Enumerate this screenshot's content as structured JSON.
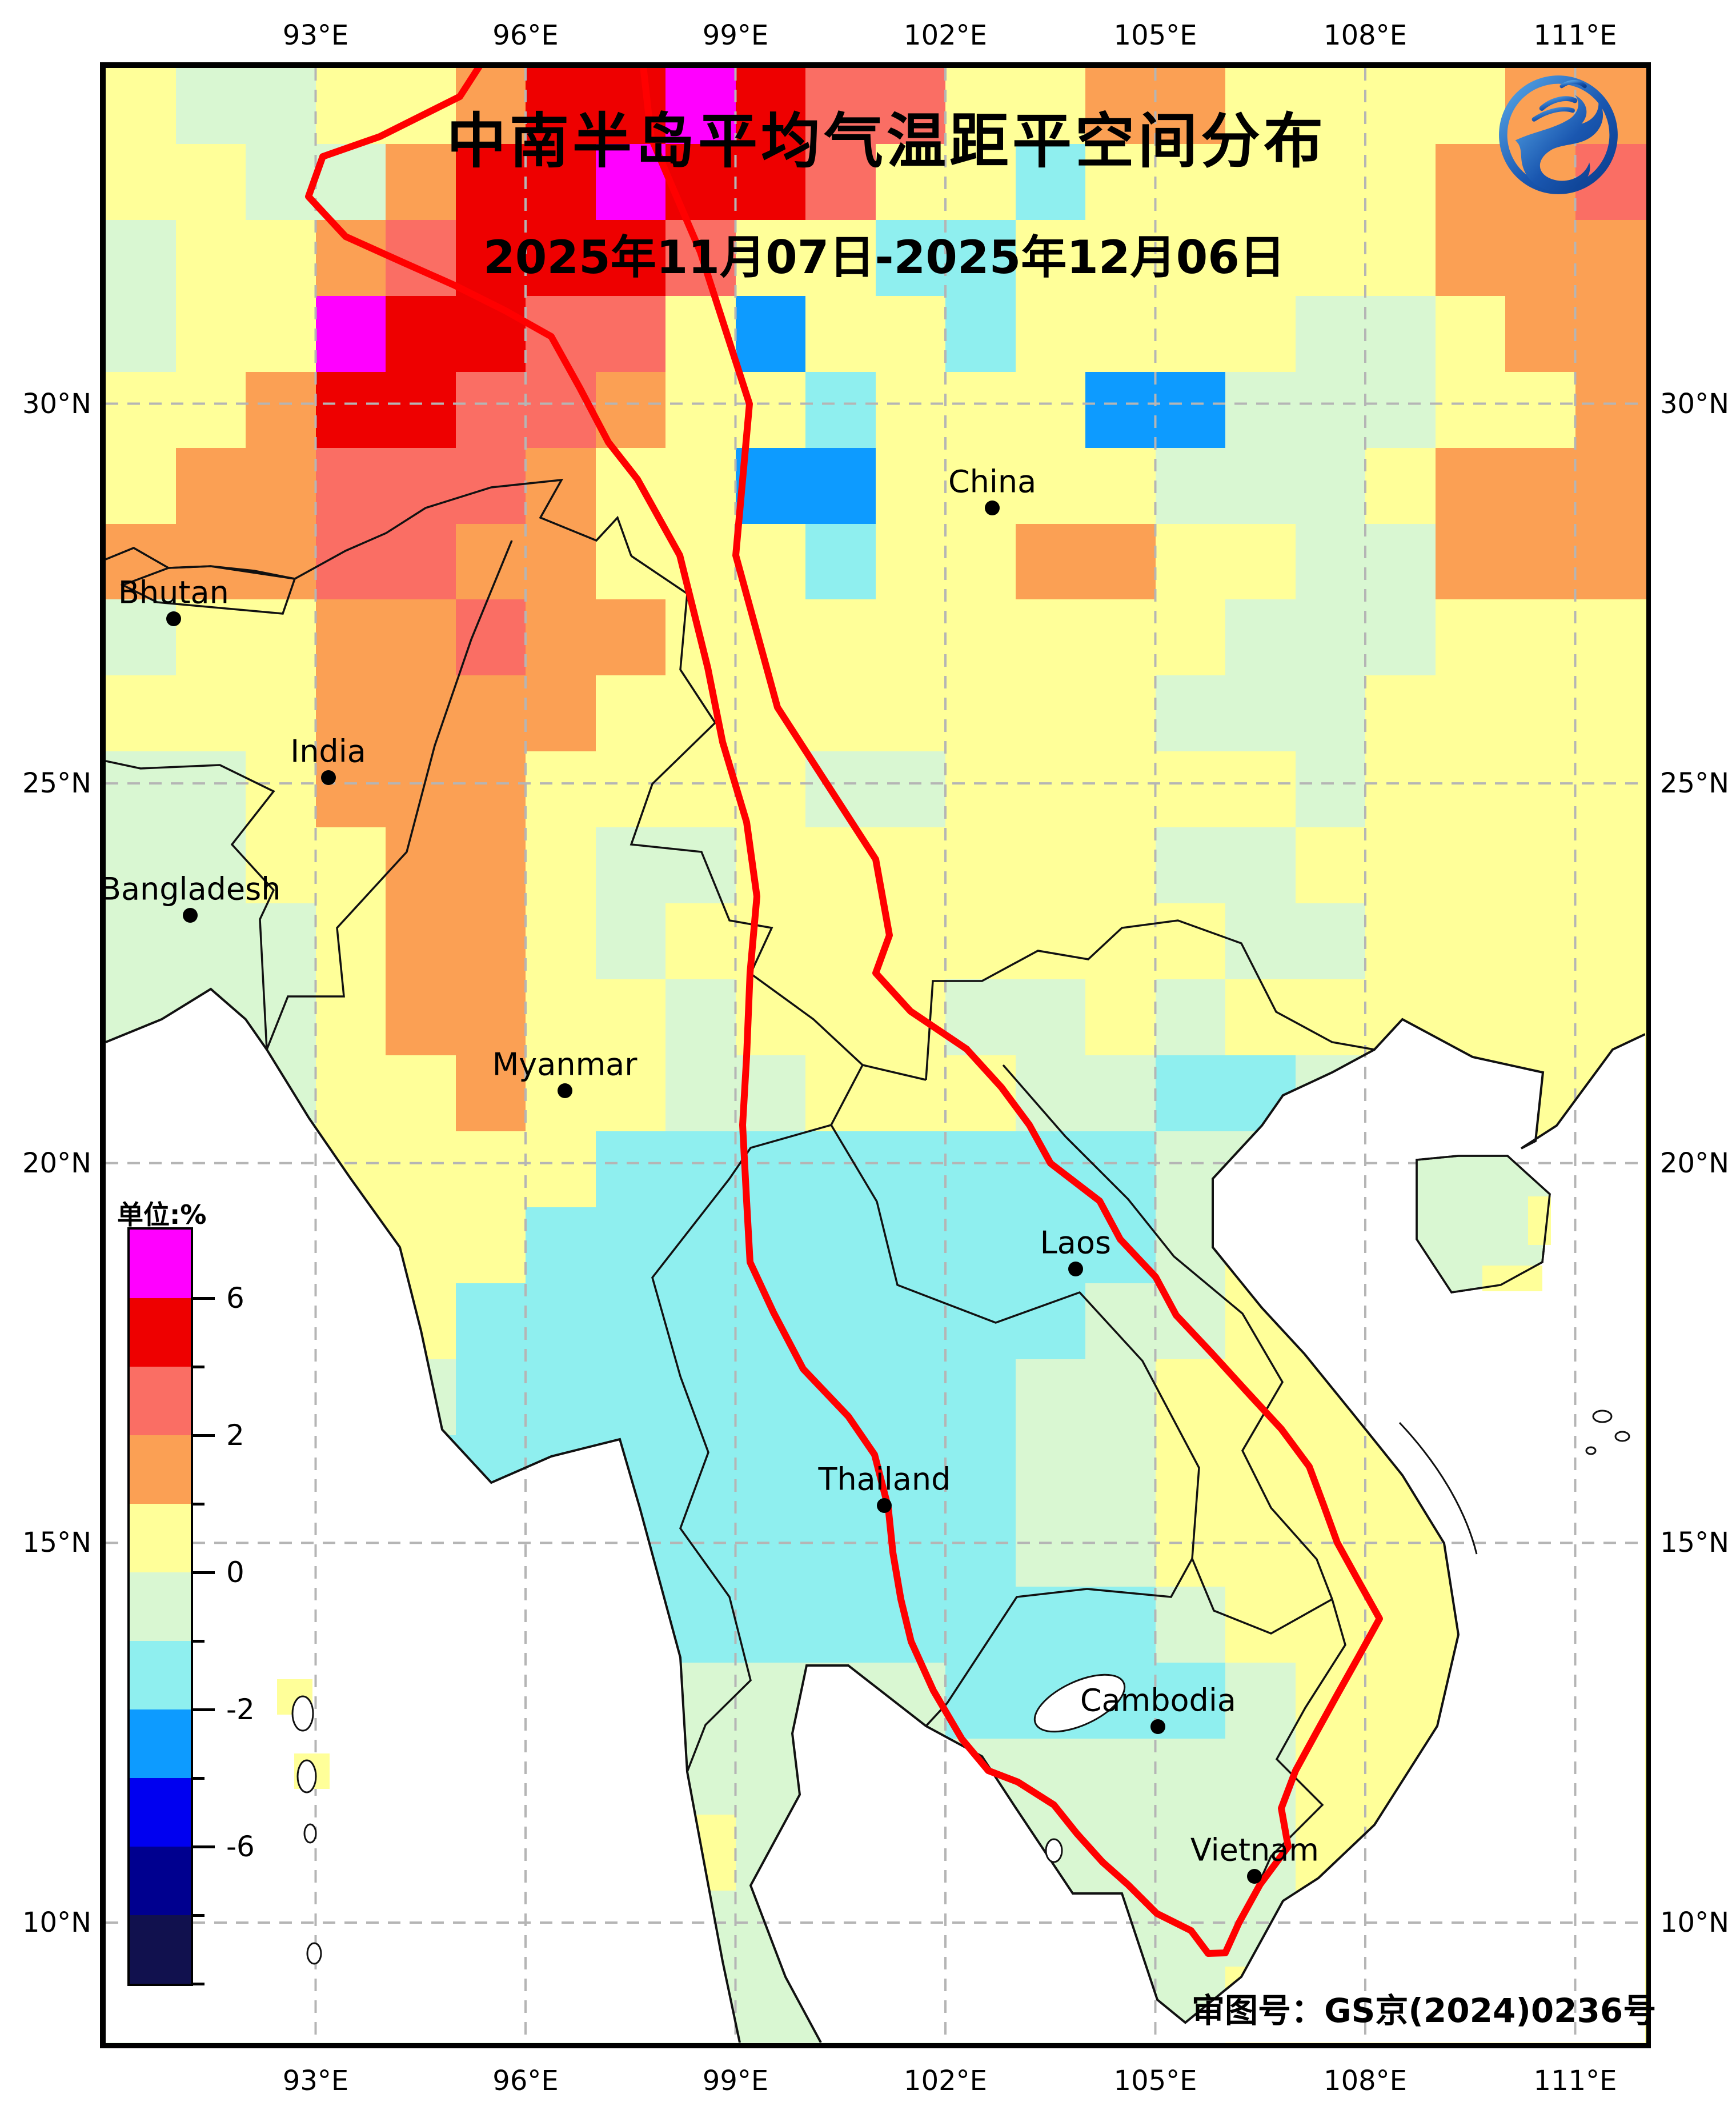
{
  "title": "中南半岛平均气温距平空间分布",
  "subtitle": "2025年11月07日-2025年12月06日",
  "approval_note": "审图号：GS京(2024)0236号",
  "logo": {
    "name": "climate-centre-dragon-logo",
    "ring_color": "#1A57B0",
    "body_color": "#14469B"
  },
  "axes": {
    "lon_labels": [
      {
        "value": 93,
        "label": "93°E"
      },
      {
        "value": 96,
        "label": "96°E"
      },
      {
        "value": 99,
        "label": "99°E"
      },
      {
        "value": 102,
        "label": "102°E"
      },
      {
        "value": 105,
        "label": "105°E"
      },
      {
        "value": 108,
        "label": "108°E"
      },
      {
        "value": 111,
        "label": "111°E"
      }
    ],
    "lat_labels": [
      {
        "value": 30,
        "label": "30°N"
      },
      {
        "value": 25,
        "label": "25°N"
      },
      {
        "value": 20,
        "label": "20°N"
      },
      {
        "value": 15,
        "label": "15°N"
      },
      {
        "value": 10,
        "label": "10°N"
      }
    ]
  },
  "countries": [
    {
      "name": "China",
      "lon": 102.67,
      "lat": 28.63
    },
    {
      "name": "Bhutan",
      "lon": 90.97,
      "lat": 27.17
    },
    {
      "name": "India",
      "lon": 93.18,
      "lat": 25.08
    },
    {
      "name": "Bangladesh",
      "lon": 91.21,
      "lat": 23.26
    },
    {
      "name": "Myanmar",
      "lon": 96.56,
      "lat": 20.95
    },
    {
      "name": "Laos",
      "lon": 103.86,
      "lat": 18.61
    },
    {
      "name": "Thailand",
      "lon": 101.13,
      "lat": 15.49
    },
    {
      "name": "Cambodia",
      "lon": 105.04,
      "lat": 12.58
    },
    {
      "name": "Vietnam",
      "lon": 106.42,
      "lat": 10.61
    }
  ],
  "legend": {
    "unit_label": "单位:%",
    "colors": [
      "#FF00FF",
      "#EE0000",
      "#FA6E64",
      "#FBA054",
      "#FFFF99",
      "#D9F7D2",
      "#8FEFEF",
      "#0D9BFF",
      "#0000F0",
      "#00008F",
      "#11114E"
    ],
    "ticks": [
      {
        "b": 1,
        "label": "6"
      },
      {
        "b": 2,
        "label": ""
      },
      {
        "b": 3,
        "label": "2"
      },
      {
        "b": 4,
        "label": ""
      },
      {
        "b": 5,
        "label": "0"
      },
      {
        "b": 6,
        "label": ""
      },
      {
        "b": 7,
        "label": "-2"
      },
      {
        "b": 8,
        "label": ""
      },
      {
        "b": 9,
        "label": "-6"
      },
      {
        "b": 10,
        "label": ""
      },
      {
        "b": 11,
        "label": ""
      }
    ]
  },
  "raster": {
    "palette": {
      "M": "#FF00FF",
      "R": "#EE0000",
      "r": "#FA6E64",
      "O": "#FBA054",
      "Y": "#FFFF99",
      "G": "#D9F7D2",
      "C": "#8FEFEF",
      "B": "#0D9BFF"
    },
    "rows": [
      "YGGYYORRMRrrYYOOYYYYOO",
      "YYGGORRMRRrYYCYYYYYOOr",
      "GYYOrRRRrYYCCYYYYYYOOO",
      "GYYMRRrrYBYYCYYYYGGYOO",
      "YYORRrrOYYCYYYBBGGGYYO",
      "YOOrrrOYYBBYYYYGGGYOOO",
      "OOOrrOOYYYCYYOOYYGGOOO",
      "GYYOOrOOYYYYYYYYGGGYYY",
      "YYYOOOOYYYYYYYYGGGYYYY",
      "GGYOOOYYYYGGYYYYYGYYYY",
      "GGYYOOYGGYYYYYYGGYYYYY",
      "GGGYOOYGYYYYYYYYGGYYYY",
      "GGGYOOYYGYYYGGYGYYYYYY",
      "GGGYYOYYGGYYYGGCCGYYYY",
      "GGGYYYYCCCCCCCCGGYGGYY",
      "GGGYYYCCCCCCCCCGYYGGYY",
      "GGGGYCCCCCCCCCGGYYYYYY",
      "GGGGGCCCCCCCCGGYYYYYYY",
      "GGGGCCCCCCCCCGGYYYYYYY",
      "GGGGGCCCCCCCCGGYYYYYYY",
      "GGGGGGCCCCCCCCCGYYYYYY",
      "GGGGGGGGGGGGCCCCGYYYYY",
      "GGGGGYGGGGGGGGGGGYYYYY",
      "GGGGGGGGYGGGGGGGGYYYYY",
      "GGGGGGGGGGGGGGGGGYYYYY",
      "GGGGGGGGGGGGGGGGYYYYYY"
    ]
  }
}
